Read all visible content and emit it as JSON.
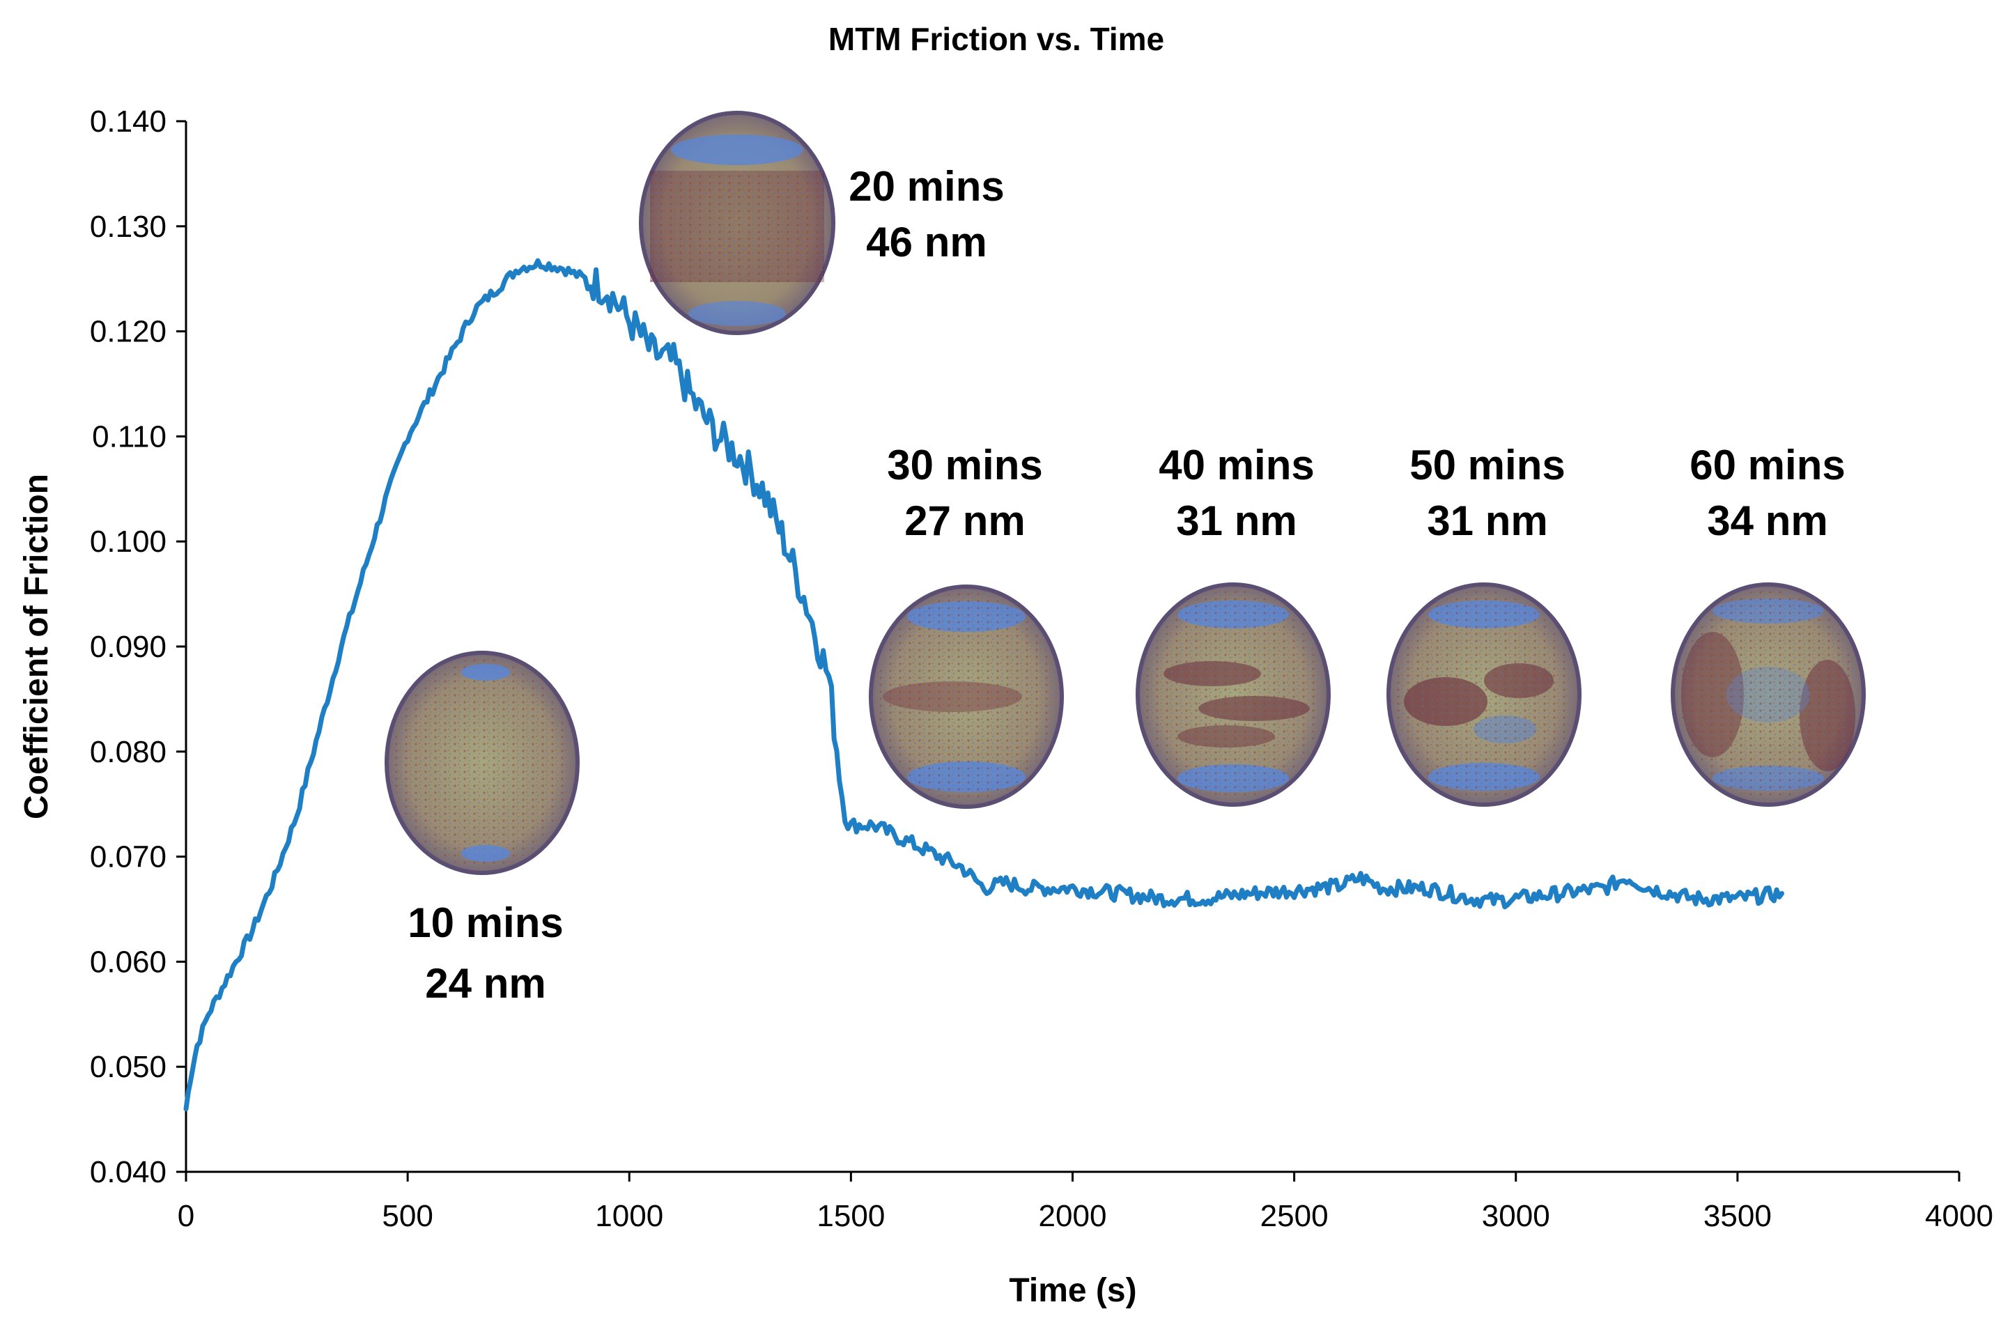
{
  "chart_data": {
    "type": "line",
    "title": "MTM Friction vs. Time",
    "xlabel": "Time (s)",
    "ylabel": "Coefficient of Friction",
    "xlim": [
      0,
      4000
    ],
    "ylim": [
      0.04,
      0.14
    ],
    "x_ticks": [
      "0",
      "500",
      "1000",
      "1500",
      "2000",
      "2500",
      "3000",
      "3500",
      "4000"
    ],
    "y_ticks": [
      "0.040",
      "0.050",
      "0.060",
      "0.070",
      "0.080",
      "0.090",
      "0.100",
      "0.110",
      "0.120",
      "0.130",
      "0.140"
    ],
    "grid": false,
    "series": [
      {
        "name": "Coefficient of Friction",
        "color": "#1f7fc4",
        "x": [
          0,
          10,
          25,
          50,
          75,
          100,
          150,
          200,
          250,
          300,
          350,
          400,
          450,
          500,
          550,
          600,
          650,
          700,
          750,
          800,
          850,
          900,
          950,
          1000,
          1020,
          1050,
          1100,
          1150,
          1200,
          1250,
          1300,
          1350,
          1400,
          1450,
          1480,
          1500,
          1550,
          1600,
          1650,
          1700,
          1750,
          1800,
          1850,
          1900,
          1950,
          2000,
          2100,
          2200,
          2300,
          2400,
          2500,
          2600,
          2650,
          2700,
          2800,
          2900,
          2950,
          3000,
          3100,
          3200,
          3250,
          3300,
          3400,
          3500,
          3600
        ],
        "y": [
          0.046,
          0.049,
          0.052,
          0.055,
          0.057,
          0.059,
          0.063,
          0.068,
          0.074,
          0.082,
          0.09,
          0.097,
          0.104,
          0.11,
          0.114,
          0.118,
          0.122,
          0.124,
          0.126,
          0.1265,
          0.126,
          0.125,
          0.124,
          0.121,
          0.12,
          0.118,
          0.117,
          0.113,
          0.11,
          0.108,
          0.105,
          0.1,
          0.094,
          0.087,
          0.076,
          0.073,
          0.073,
          0.072,
          0.071,
          0.07,
          0.069,
          0.067,
          0.0675,
          0.067,
          0.067,
          0.067,
          0.0665,
          0.066,
          0.066,
          0.0665,
          0.0668,
          0.0672,
          0.068,
          0.067,
          0.067,
          0.066,
          0.0658,
          0.066,
          0.0665,
          0.067,
          0.068,
          0.067,
          0.066,
          0.066,
          0.0665
        ]
      }
    ],
    "annotations": [
      {
        "time": "10 mins",
        "value": "24 nm"
      },
      {
        "time": "20 mins",
        "value": "46 nm"
      },
      {
        "time": "30 mins",
        "value": "27 nm"
      },
      {
        "time": "40 mins",
        "value": "31 nm"
      },
      {
        "time": "50 mins",
        "value": "31 nm"
      },
      {
        "time": "60 mins",
        "value": "34 nm"
      }
    ]
  },
  "colors": {
    "line": "#1f7fc4",
    "disc_base": "#9c8a6c",
    "disc_blue": "#5a86d6",
    "disc_wear": "#6a2a3a"
  }
}
